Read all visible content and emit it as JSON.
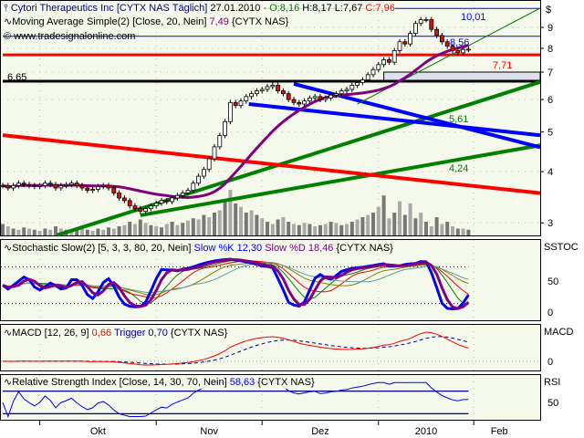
{
  "header": {
    "title": "Cytori Therapeutics Inc [CYTX NAS  Täglich]",
    "date": "27.01.2010",
    "sep": "-",
    "open": "O:8,16",
    "high": "H:8,17",
    "low": "L:7,67",
    "close": "C:7,96",
    "ma_label": "Moving Average Simple(2) [Close, 20, Nein]",
    "ma_value": "7,49",
    "ma_symbol": "{CYTX NAS}",
    "copyright": "© www.tradesignalonline.com"
  },
  "colors": {
    "panel_bg": "#f5f9ec",
    "up": "#ffffff",
    "down": "#ff0000",
    "ma": "#800080",
    "trend_green": "#008000",
    "trend_red": "#ff0000",
    "trend_blue": "#0000ff"
  },
  "chart_data": [
    {
      "type": "candlestick",
      "yscale": "log",
      "ylim": [
        2.8,
        10.6
      ],
      "y_ticks": [
        "3",
        "4",
        "5",
        "6",
        "7",
        "8",
        "9"
      ],
      "y_unit": "$",
      "x_ticks": [
        {
          "label": "Okt",
          "index": 7
        },
        {
          "label": "Nov",
          "index": 29
        },
        {
          "label": "Dez",
          "index": 49
        },
        {
          "label": "2010",
          "index": 71
        },
        {
          "label": "Feb",
          "index": 89
        }
      ],
      "close": [
        3.7,
        3.65,
        3.7,
        3.75,
        3.72,
        3.7,
        3.68,
        3.7,
        3.75,
        3.72,
        3.65,
        3.7,
        3.72,
        3.75,
        3.7,
        3.65,
        3.6,
        3.62,
        3.68,
        3.7,
        3.65,
        3.55,
        3.45,
        3.4,
        3.3,
        3.25,
        3.2,
        3.25,
        3.3,
        3.35,
        3.4,
        3.38,
        3.45,
        3.5,
        3.55,
        3.6,
        3.75,
        3.9,
        4.05,
        4.3,
        4.6,
        4.9,
        5.3,
        5.9,
        5.8,
        5.95,
        6.1,
        6.2,
        6.3,
        6.35,
        6.45,
        6.5,
        6.3,
        6.2,
        6.0,
        5.9,
        5.85,
        5.95,
        6.05,
        6.1,
        6.0,
        6.05,
        6.15,
        6.2,
        6.3,
        6.35,
        6.5,
        6.6,
        6.7,
        6.9,
        7.1,
        7.3,
        7.5,
        7.4,
        7.9,
        8.3,
        8.2,
        8.7,
        9.2,
        9.4,
        9.4,
        8.9,
        8.6,
        8.3,
        8.1,
        7.9,
        7.8,
        7.95,
        7.96
      ],
      "volume": [
        10,
        8,
        6,
        5,
        7,
        6,
        5,
        4,
        6,
        5,
        8,
        6,
        5,
        4,
        6,
        7,
        5,
        4,
        6,
        5,
        7,
        6,
        8,
        9,
        12,
        10,
        14,
        11,
        9,
        8,
        7,
        10,
        12,
        9,
        11,
        13,
        15,
        14,
        18,
        16,
        20,
        22,
        30,
        40,
        28,
        25,
        20,
        22,
        18,
        15,
        12,
        10,
        14,
        16,
        12,
        10,
        9,
        11,
        10,
        8,
        9,
        10,
        12,
        11,
        9,
        10,
        12,
        14,
        16,
        18,
        20,
        25,
        35,
        15,
        20,
        30,
        18,
        28,
        15,
        20,
        12,
        8,
        16,
        10,
        12,
        8,
        6,
        6,
        5
      ],
      "ma_period": 20,
      "levels": [
        {
          "label": "10,01",
          "price": 10.01,
          "from": 50,
          "color": "#0000ff"
        },
        {
          "label": "8,56",
          "price": 8.56,
          "from": 0,
          "color": "#0000ff"
        },
        {
          "label": "7,71",
          "price": 7.71,
          "from": 0,
          "color": "#ff0000"
        },
        {
          "label": "6,65",
          "price": 6.65,
          "from": 0,
          "color": "#000000"
        }
      ],
      "zone": {
        "low": 6.65,
        "high": 7.0,
        "from": 72
      },
      "trendlines": [
        {
          "p1": [
            10.3,
            2.8
          ],
          "p2": [
            102,
            6.65
          ],
          "color": "#008000"
        },
        {
          "p1": [
            26,
            3.13
          ],
          "p2": [
            102,
            4.65
          ],
          "color": "#008000",
          "label": "4,24"
        },
        {
          "p1": [
            0,
            4.91
          ],
          "p2": [
            102,
            3.54
          ],
          "color": "#ff0000"
        },
        {
          "p1": [
            46.5,
            5.85
          ],
          "p2": [
            102,
            4.9
          ],
          "color": "#0000ff"
        },
        {
          "p1": [
            55,
            6.55
          ],
          "p2": [
            102,
            4.57
          ],
          "color": "#0000ff"
        },
        {
          "p1": [
            67,
            5.85
          ],
          "p2": [
            102,
            10.1
          ],
          "color": "#008000",
          "thin": true
        },
        {
          "label_only": "5,61",
          "color": "#008000"
        }
      ]
    },
    {
      "type": "line",
      "title": "Stochastic Slow(2) [5, 3, 3, 80, 20, Nein]",
      "k_label": "Slow %K 12,30",
      "d_label": "Slow %D 18,46",
      "symbol": "{CYTX NAS}",
      "axis_label": "SSTOC",
      "y_ticks": [
        "50",
        "0"
      ],
      "ylim": [
        0,
        100
      ],
      "levels": [
        80,
        20
      ]
    },
    {
      "type": "line",
      "title": "MACD [12, 26, 9]",
      "macd_label": "0,66",
      "trigger_label": "Trigger 0,70",
      "symbol": "{CYTX NAS}",
      "axis_label": "MACD",
      "y_ticks": [
        "0"
      ]
    },
    {
      "type": "line",
      "title": "Relative Strength Index [Close, 14, 30, 70, Nein]",
      "value_label": "58,63",
      "symbol": "{CYTX NAS}",
      "axis_label": "RSI",
      "y_ticks": [
        "50"
      ],
      "levels": [
        70,
        30
      ]
    }
  ]
}
